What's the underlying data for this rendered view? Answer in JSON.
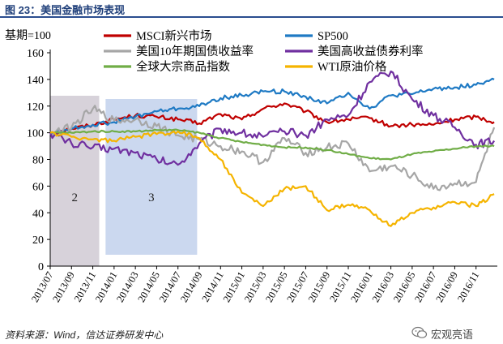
{
  "header": {
    "title": "图 23：美国金融市场表现"
  },
  "footer": {
    "source": "资料来源：Wind，信达证券研发中心"
  },
  "watermark": {
    "text": "宏观亮语",
    "icon": "wechat-icon"
  },
  "chart_data": {
    "type": "line",
    "title": "",
    "ylabel": "基期=100",
    "xlabel": "",
    "ylim": [
      0,
      160
    ],
    "yticks": [
      0,
      20,
      40,
      60,
      80,
      100,
      120,
      140,
      160
    ],
    "xticks": [
      "2013/07",
      "2013/09",
      "2013/11",
      "2014/01",
      "2014/03",
      "2014/05",
      "2014/07",
      "2014/09",
      "2014/11",
      "2015/01",
      "2015/03",
      "2015/05",
      "2015/07",
      "2015/09",
      "2015/11",
      "2016/01",
      "2016/03",
      "2016/05",
      "2016/07",
      "2016/09",
      "2016/11"
    ],
    "x_range": [
      0,
      42
    ],
    "legend_position": "top",
    "annotations": [
      {
        "label": "2",
        "x_start": 0,
        "x_end": 4.6,
        "color": "#d9d4dc"
      },
      {
        "label": "3",
        "x_start": 5.2,
        "x_end": 13.8,
        "color": "#cdd8ec"
      }
    ],
    "series": [
      {
        "name": "MSCI新兴市场",
        "color": "#c00000",
        "x": [
          0,
          2,
          4,
          6,
          8,
          10,
          12,
          14,
          16,
          18,
          20,
          22,
          24,
          26,
          28,
          30,
          32,
          34,
          36,
          38,
          40,
          41.7
        ],
        "values": [
          100,
          103,
          106,
          110,
          113,
          112,
          110,
          107,
          114,
          110,
          118,
          122,
          116,
          108,
          110,
          111,
          105,
          106,
          106,
          110,
          112,
          108
        ]
      },
      {
        "name": "SP500",
        "color": "#1f7ac4",
        "x": [
          0,
          2,
          4,
          6,
          8,
          10,
          12,
          14,
          16,
          18,
          20,
          22,
          24,
          26,
          28,
          30,
          32,
          34,
          36,
          38,
          40,
          41.7
        ],
        "values": [
          100,
          103,
          106,
          108,
          112,
          116,
          118,
          120,
          126,
          128,
          131,
          131,
          127,
          122,
          130,
          118,
          128,
          129,
          133,
          134,
          136,
          140
        ]
      },
      {
        "name": "美国10年期国债收益率",
        "color": "#a6a6a6",
        "x": [
          0,
          2,
          4,
          6,
          8,
          10,
          12,
          14,
          16,
          18,
          20,
          22,
          24,
          26,
          28,
          30,
          32,
          34,
          36,
          38,
          40,
          41.7
        ],
        "values": [
          100,
          104,
          118,
          109,
          110,
          105,
          98,
          95,
          90,
          86,
          78,
          96,
          85,
          89,
          92,
          71,
          75,
          68,
          58,
          62,
          63,
          104
        ]
      },
      {
        "name": "美国高收益债券利率",
        "color": "#7030a0",
        "x": [
          0,
          2,
          4,
          6,
          8,
          10,
          12,
          14,
          16,
          18,
          20,
          22,
          24,
          26,
          28,
          30,
          32,
          34,
          36,
          38,
          40,
          41.7
        ],
        "values": [
          100,
          92,
          89,
          88,
          85,
          80,
          76,
          92,
          103,
          100,
          97,
          101,
          98,
          110,
          113,
          138,
          146,
          125,
          113,
          104,
          91,
          94
        ]
      },
      {
        "name": "全球大宗商品指数",
        "color": "#70ad47",
        "x": [
          0,
          2,
          4,
          6,
          8,
          10,
          12,
          14,
          16,
          18,
          20,
          22,
          24,
          26,
          28,
          30,
          32,
          34,
          36,
          38,
          40,
          41.7
        ],
        "values": [
          100,
          100,
          101,
          101,
          101,
          102,
          102,
          100,
          96,
          93,
          91,
          89,
          89,
          87,
          84,
          81,
          80,
          84,
          86,
          88,
          90,
          90
        ]
      },
      {
        "name": "WTI原油价格",
        "color": "#f5b400",
        "x": [
          0,
          2,
          4,
          6,
          8,
          10,
          12,
          14,
          16,
          18,
          20,
          22,
          24,
          26,
          28,
          30,
          32,
          34,
          36,
          38,
          40,
          41.7
        ],
        "values": [
          100,
          97,
          95,
          94,
          97,
          99,
          101,
          96,
          80,
          55,
          45,
          58,
          60,
          42,
          46,
          42,
          30,
          40,
          44,
          48,
          45,
          54
        ]
      }
    ]
  }
}
